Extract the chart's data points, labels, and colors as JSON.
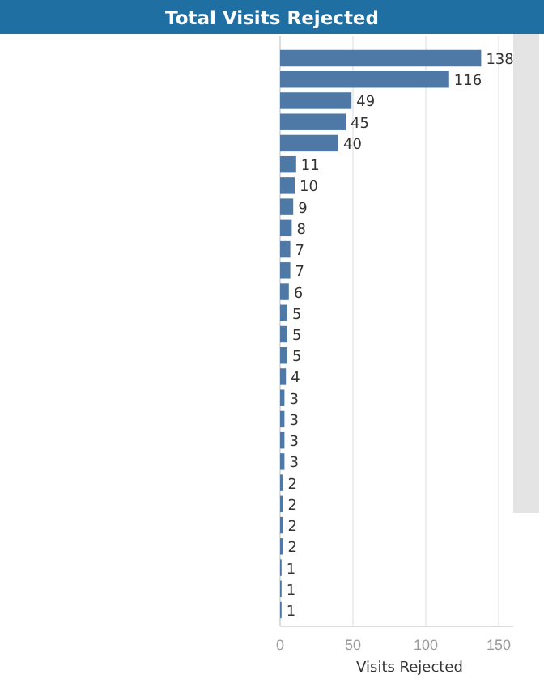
{
  "chart_data": {
    "type": "bar",
    "orientation": "horizontal",
    "title": "Total Visits Rejected",
    "xlabel": "Visits Rejected",
    "categories": [
      null,
      null,
      null,
      null,
      null,
      null,
      null,
      null,
      null,
      null,
      null,
      null,
      null,
      null,
      null,
      null,
      null,
      null,
      null,
      null,
      null,
      null,
      null,
      null,
      null,
      null,
      null
    ],
    "values": [
      138,
      116,
      49,
      45,
      40,
      11,
      10,
      9,
      8,
      7,
      7,
      6,
      5,
      5,
      5,
      4,
      3,
      3,
      3,
      3,
      2,
      2,
      2,
      2,
      1,
      1,
      1
    ],
    "color": "#4e79a7",
    "xlim": [
      0,
      160
    ],
    "xticks": [
      0,
      50,
      100,
      150
    ],
    "grid": "x",
    "data_labels": true
  }
}
